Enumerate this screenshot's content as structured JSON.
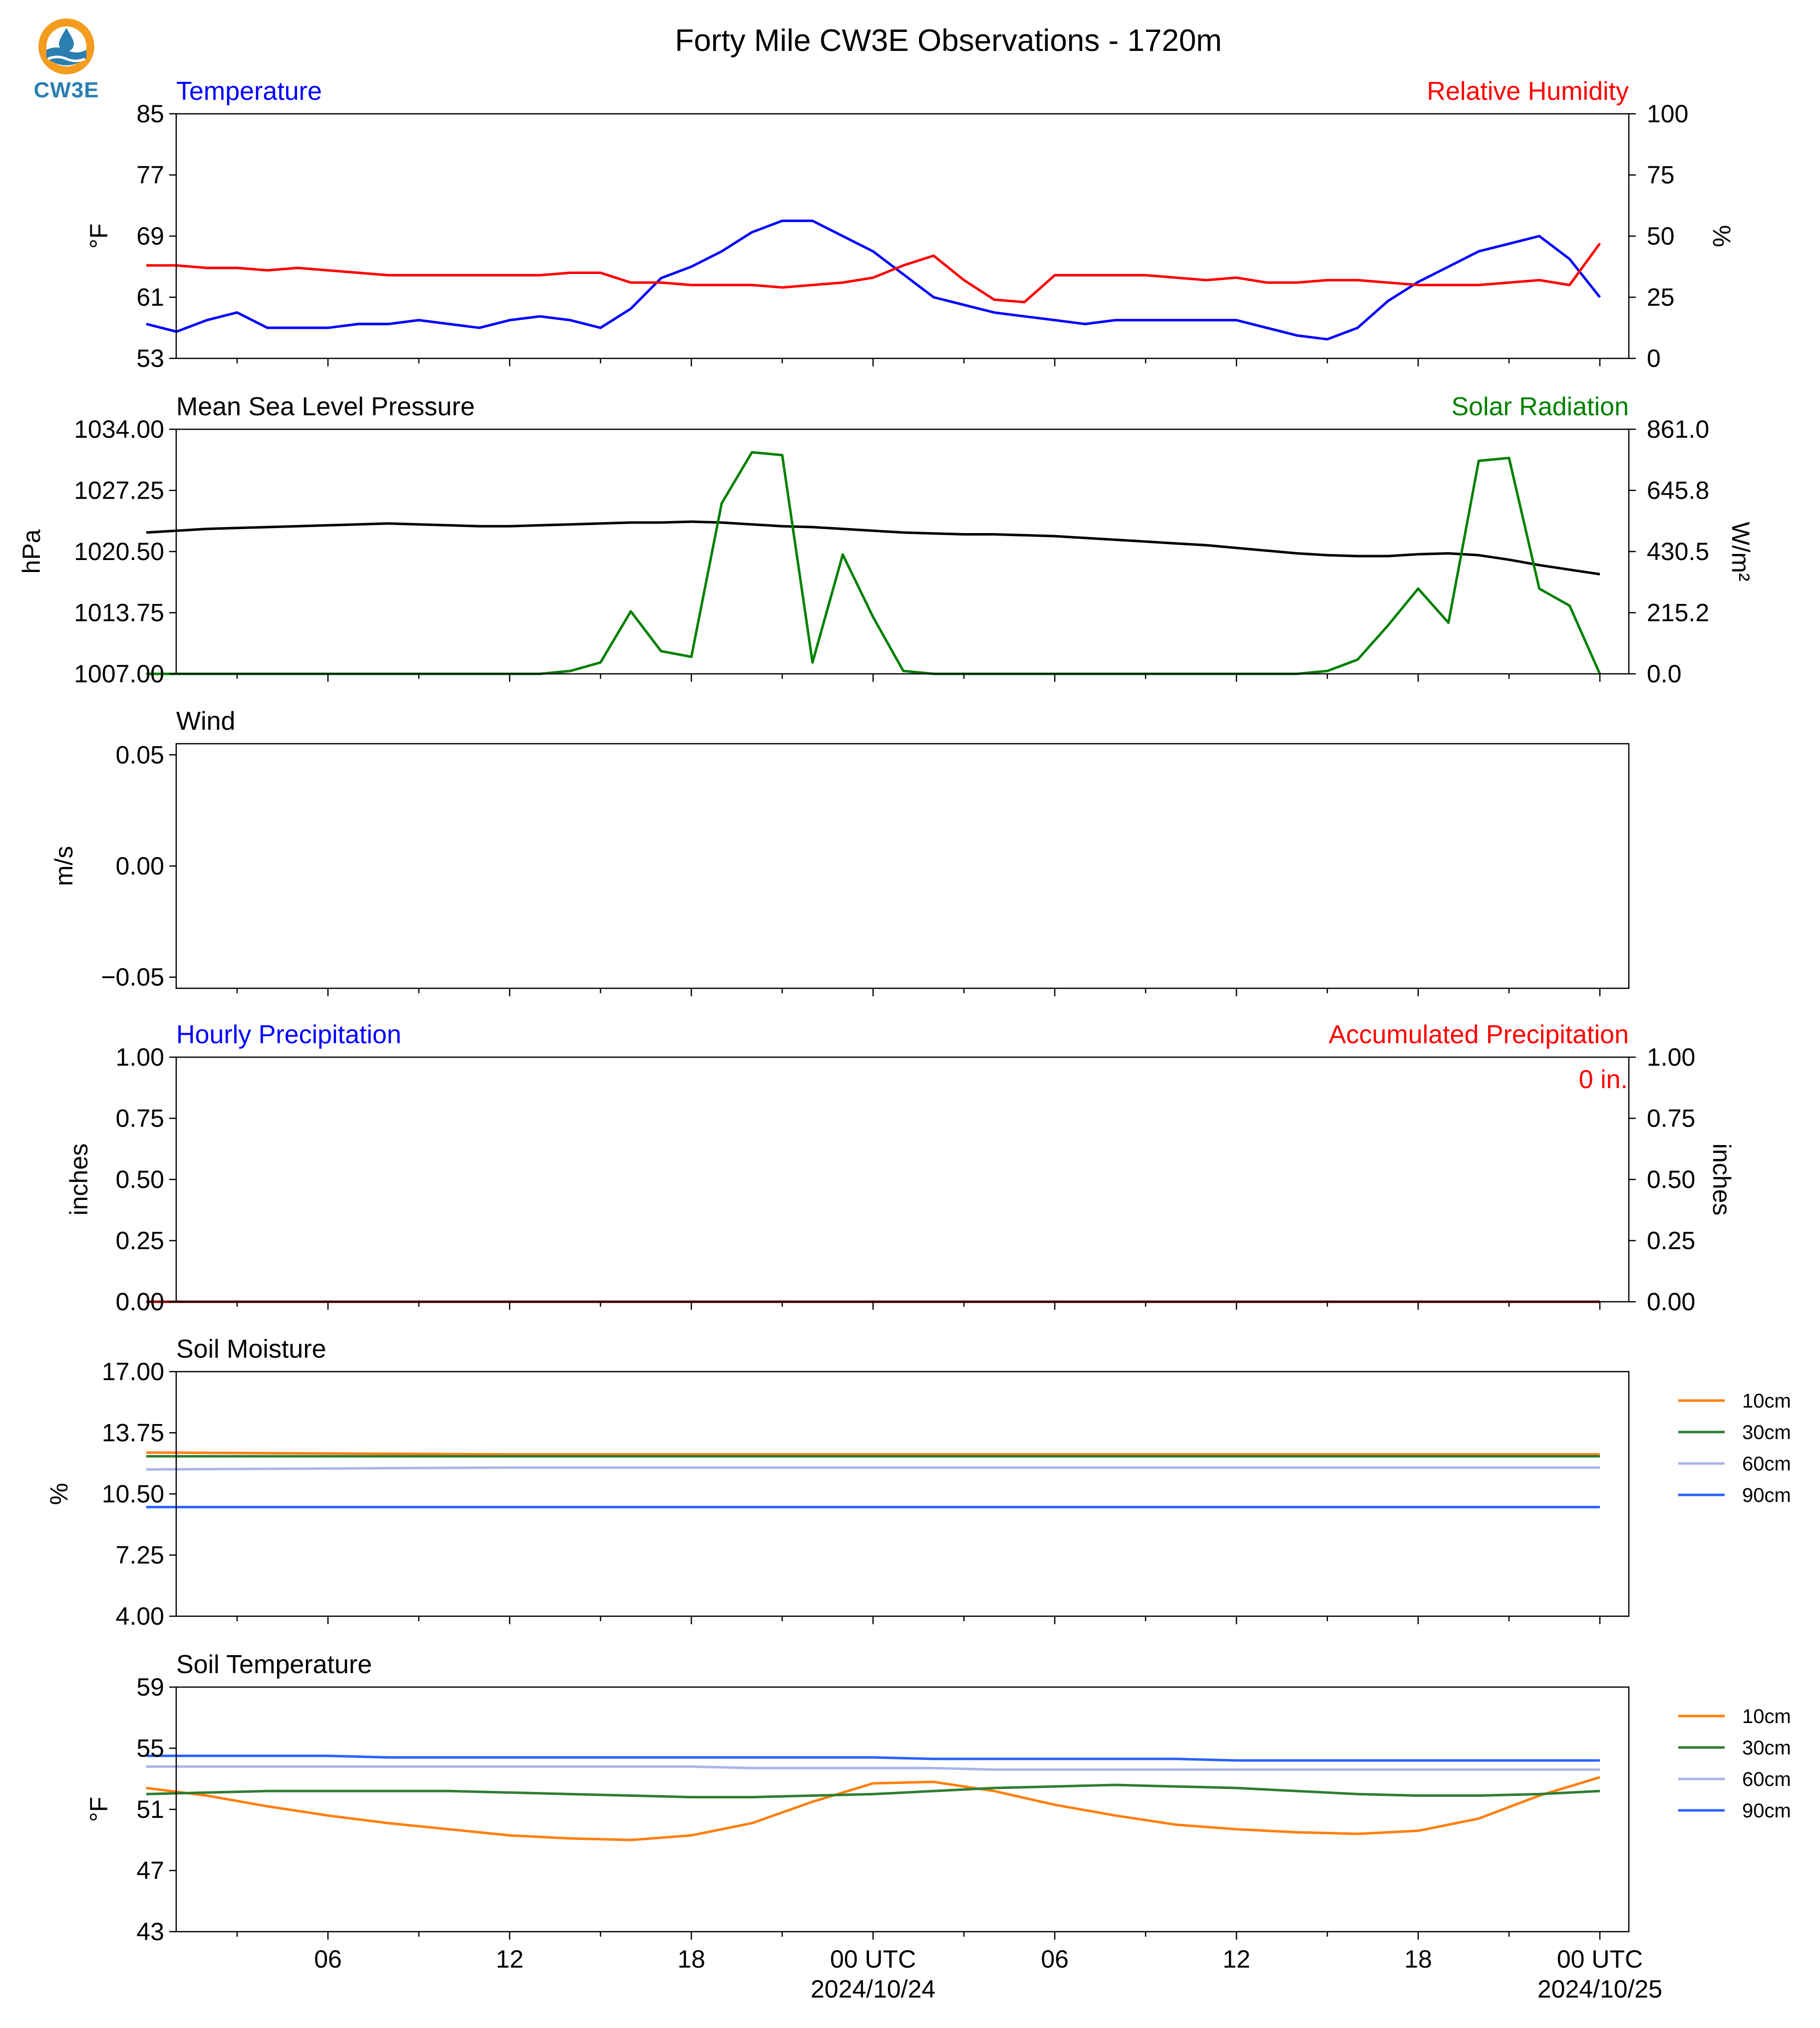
{
  "title": "Forty Mile CW3E Observations - 1720m",
  "logo": {
    "text": "CW3E",
    "icon": "cw3e-logo",
    "colors": {
      "ring": "#f39c1f",
      "water": "#2a7fb0"
    }
  },
  "colors": {
    "temperature": "#0000ff",
    "humidity": "#ff0000",
    "pressure": "#000000",
    "solar": "#008000",
    "soil10": "#ff7f0e",
    "soil30": "#2e7d32",
    "soil60": "#a9b4e8",
    "soil90": "#2962ff"
  },
  "x_axis": {
    "ticks": [
      "06",
      "12",
      "18",
      "00 UTC",
      "06",
      "12",
      "18",
      "00 UTC"
    ],
    "dates": [
      "2024/10/24",
      "2024/10/25"
    ]
  },
  "chart_data": [
    {
      "type": "line",
      "panel": "temperature-humidity",
      "left_label": "Temperature",
      "right_label": "Relative Humidity",
      "left_unit": "°F",
      "right_unit": "%",
      "ylim": [
        53,
        85
      ],
      "y2lim": [
        0,
        100
      ],
      "yticks": [
        "85",
        "77",
        "69",
        "61",
        "53"
      ],
      "y2ticks": [
        "100",
        "75",
        "50",
        "25",
        "0"
      ],
      "x_hours": [
        0,
        1,
        2,
        3,
        4,
        5,
        6,
        7,
        8,
        9,
        10,
        11,
        12,
        13,
        14,
        15,
        16,
        17,
        18,
        19,
        20,
        21,
        22,
        23,
        24,
        25,
        26,
        27,
        28,
        29,
        30,
        31,
        32,
        33,
        34,
        35,
        36,
        37,
        38,
        39,
        40,
        41,
        42,
        43,
        44,
        45,
        46,
        47,
        48
      ],
      "series": [
        {
          "name": "Temperature",
          "axis": "left",
          "color": "#0000ff",
          "values": [
            57.5,
            56.5,
            58,
            59,
            57,
            57,
            57,
            57.5,
            57.5,
            58,
            57.5,
            57,
            58,
            58.5,
            58,
            57,
            59.5,
            63.5,
            65,
            67,
            69.5,
            71,
            71,
            69,
            67,
            64,
            61,
            60,
            59,
            58.5,
            58,
            57.5,
            58,
            58,
            58,
            58,
            58,
            57,
            56,
            55.5,
            57,
            60.5,
            63,
            65,
            67,
            68,
            69,
            66,
            61
          ]
        },
        {
          "name": "Relative Humidity",
          "axis": "right",
          "color": "#ff0000",
          "values": [
            38,
            38,
            37,
            37,
            36,
            37,
            36,
            35,
            34,
            34,
            34,
            34,
            34,
            34,
            35,
            35,
            31,
            31,
            30,
            30,
            30,
            29,
            30,
            31,
            33,
            38,
            42,
            32,
            24,
            23,
            34,
            34,
            34,
            34,
            33,
            32,
            33,
            31,
            31,
            32,
            32,
            31,
            30,
            30,
            30,
            31,
            32,
            30,
            47
          ]
        }
      ]
    },
    {
      "type": "line",
      "panel": "pressure-solar",
      "left_label": "Mean Sea Level Pressure",
      "right_label": "Solar Radiation",
      "left_unit": "hPa",
      "right_unit": "W/m²",
      "ylim": [
        1007,
        1034
      ],
      "y2lim": [
        0,
        861
      ],
      "yticks": [
        "1034.00",
        "1027.25",
        "1020.50",
        "1013.75",
        "1007.00"
      ],
      "y2ticks": [
        "861.0",
        "645.8",
        "430.5",
        "215.2",
        "0.0"
      ],
      "x_hours": [
        0,
        1,
        2,
        3,
        4,
        5,
        6,
        7,
        8,
        9,
        10,
        11,
        12,
        13,
        14,
        15,
        16,
        17,
        18,
        19,
        20,
        21,
        22,
        23,
        24,
        25,
        26,
        27,
        28,
        29,
        30,
        31,
        32,
        33,
        34,
        35,
        36,
        37,
        38,
        39,
        40,
        41,
        42,
        43,
        44,
        45,
        46,
        47,
        48
      ],
      "series": [
        {
          "name": "Mean Sea Level Pressure",
          "axis": "left",
          "color": "#000000",
          "values": [
            1022.6,
            1022.8,
            1023.0,
            1023.1,
            1023.2,
            1023.3,
            1023.4,
            1023.5,
            1023.6,
            1023.5,
            1023.4,
            1023.3,
            1023.3,
            1023.4,
            1023.5,
            1023.6,
            1023.7,
            1023.7,
            1023.8,
            1023.7,
            1023.5,
            1023.3,
            1023.2,
            1023.0,
            1022.8,
            1022.6,
            1022.5,
            1022.4,
            1022.4,
            1022.3,
            1022.2,
            1022.0,
            1021.8,
            1021.6,
            1021.4,
            1021.2,
            1020.9,
            1020.6,
            1020.3,
            1020.1,
            1020.0,
            1020.0,
            1020.2,
            1020.3,
            1020.1,
            1019.6,
            1019.0,
            1018.5,
            1018.0
          ]
        },
        {
          "name": "Solar Radiation",
          "axis": "right",
          "color": "#008000",
          "values": [
            0,
            0,
            0,
            0,
            0,
            0,
            0,
            0,
            0,
            0,
            0,
            0,
            0,
            0,
            10,
            40,
            220,
            80,
            60,
            600,
            780,
            770,
            40,
            420,
            200,
            10,
            0,
            0,
            0,
            0,
            0,
            0,
            0,
            0,
            0,
            0,
            0,
            0,
            0,
            10,
            50,
            170,
            300,
            180,
            750,
            760,
            300,
            240,
            0
          ]
        }
      ]
    },
    {
      "type": "line",
      "panel": "wind",
      "left_label": "Wind",
      "left_unit": "m/s",
      "ylim": [
        -0.055,
        0.055
      ],
      "yticks": [
        "0.05",
        "0.00",
        "−0.05"
      ],
      "series": []
    },
    {
      "type": "line",
      "panel": "precipitation",
      "left_label": "Hourly Precipitation",
      "right_label": "Accumulated Precipitation",
      "left_unit": "inches",
      "right_unit": "inches",
      "annotation": "0 in.",
      "ylim": [
        0,
        1
      ],
      "y2lim": [
        0,
        1
      ],
      "yticks": [
        "1.00",
        "0.75",
        "0.50",
        "0.25",
        "0.00"
      ],
      "y2ticks": [
        "1.00",
        "0.75",
        "0.50",
        "0.25",
        "0.00"
      ],
      "x_hours": [
        0,
        48
      ],
      "series": [
        {
          "name": "Hourly Precipitation",
          "axis": "left",
          "color": "#0000ff",
          "values": [
            0,
            0
          ]
        },
        {
          "name": "Accumulated Precipitation",
          "axis": "right",
          "color": "#8b0000",
          "values": [
            0,
            0
          ]
        }
      ]
    },
    {
      "type": "line",
      "panel": "soil-moisture",
      "left_label": "Soil Moisture",
      "left_unit": "%",
      "ylim": [
        4,
        17
      ],
      "yticks": [
        "17.00",
        "13.75",
        "10.50",
        "7.25",
        "4.00"
      ],
      "x_hours": [
        0,
        12,
        24,
        36,
        48
      ],
      "series": [
        {
          "name": "10cm",
          "color": "#ff7f0e",
          "values": [
            12.7,
            12.6,
            12.6,
            12.6,
            12.6
          ]
        },
        {
          "name": "30cm",
          "color": "#2e7d32",
          "values": [
            12.5,
            12.5,
            12.5,
            12.5,
            12.5
          ]
        },
        {
          "name": "60cm",
          "color": "#a9b4e8",
          "values": [
            11.8,
            11.9,
            11.9,
            11.9,
            11.9
          ]
        },
        {
          "name": "90cm",
          "color": "#2962ff",
          "values": [
            9.8,
            9.8,
            9.8,
            9.8,
            9.8
          ]
        }
      ]
    },
    {
      "type": "line",
      "panel": "soil-temperature",
      "left_label": "Soil Temperature",
      "left_unit": "°F",
      "ylim": [
        43,
        59
      ],
      "yticks": [
        "59",
        "55",
        "51",
        "47",
        "43"
      ],
      "x_hours": [
        0,
        2,
        4,
        6,
        8,
        10,
        12,
        14,
        16,
        18,
        20,
        22,
        24,
        26,
        28,
        30,
        32,
        34,
        36,
        38,
        40,
        42,
        44,
        46,
        48
      ],
      "series": [
        {
          "name": "10cm",
          "color": "#ff7f0e",
          "values": [
            52.4,
            51.9,
            51.2,
            50.6,
            50.1,
            49.7,
            49.3,
            49.1,
            49.0,
            49.3,
            50.1,
            51.5,
            52.7,
            52.8,
            52.2,
            51.3,
            50.6,
            50.0,
            49.7,
            49.5,
            49.4,
            49.6,
            50.4,
            51.9,
            53.1
          ]
        },
        {
          "name": "30cm",
          "color": "#2e7d32",
          "values": [
            52.0,
            52.1,
            52.2,
            52.2,
            52.2,
            52.2,
            52.1,
            52.0,
            51.9,
            51.8,
            51.8,
            51.9,
            52.0,
            52.2,
            52.4,
            52.5,
            52.6,
            52.5,
            52.4,
            52.2,
            52.0,
            51.9,
            51.9,
            52.0,
            52.2
          ]
        },
        {
          "name": "60cm",
          "color": "#a9b4e8",
          "values": [
            53.8,
            53.8,
            53.8,
            53.8,
            53.8,
            53.8,
            53.8,
            53.8,
            53.8,
            53.8,
            53.7,
            53.7,
            53.7,
            53.7,
            53.6,
            53.6,
            53.6,
            53.6,
            53.6,
            53.6,
            53.6,
            53.6,
            53.6,
            53.6,
            53.6
          ]
        },
        {
          "name": "90cm",
          "color": "#2962ff",
          "values": [
            54.5,
            54.5,
            54.5,
            54.5,
            54.4,
            54.4,
            54.4,
            54.4,
            54.4,
            54.4,
            54.4,
            54.4,
            54.4,
            54.3,
            54.3,
            54.3,
            54.3,
            54.3,
            54.2,
            54.2,
            54.2,
            54.2,
            54.2,
            54.2,
            54.2
          ]
        }
      ]
    }
  ]
}
